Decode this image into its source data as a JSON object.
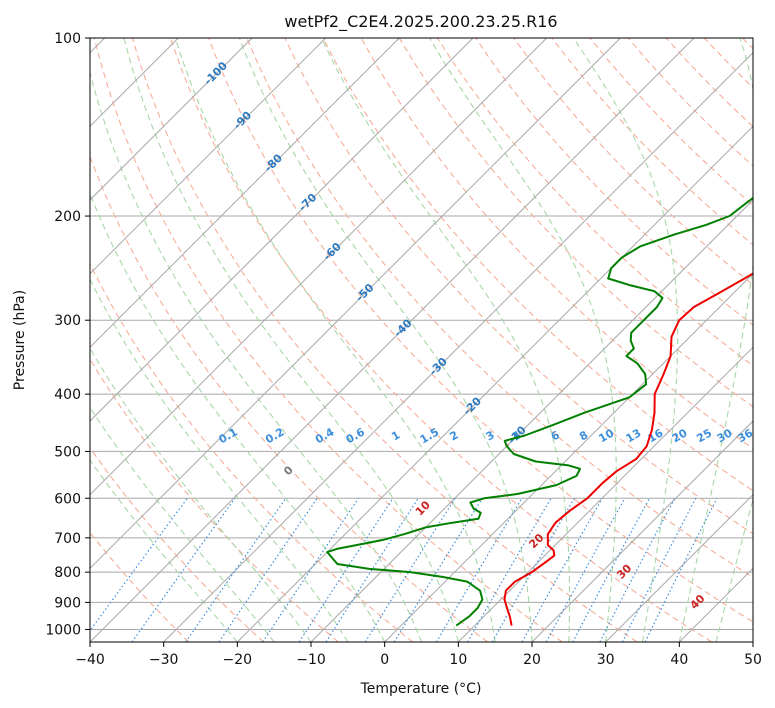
{
  "chart_data": {
    "type": "line",
    "title": "wetPf2_C2E4.2025.200.23.25.R16",
    "xlabel": "Temperature (°C)",
    "ylabel": "Pressure (hPa)",
    "xlim": [
      -40,
      50
    ],
    "ylim": [
      1050,
      100
    ],
    "y_scale": "log",
    "grid": true,
    "x_ticks": [
      "−40",
      "−30",
      "−20",
      "−10",
      "0",
      "10",
      "20",
      "30",
      "40",
      "50"
    ],
    "y_ticks": [
      "100",
      "200",
      "300",
      "400",
      "500",
      "600",
      "700",
      "800",
      "900",
      "1000"
    ],
    "colors": {
      "temperature": "#ee0000",
      "dewpoint": "#008000",
      "isotherm": "#a8a8a8",
      "dry_adiabat": "#f6ad98",
      "moist_adiabat": "#a8d6a8",
      "mixing_ratio": "#3c8fdc",
      "isobar": "#a8a8a8",
      "label_blue": "#2c79c0",
      "label_red": "#cc2222"
    },
    "series": [
      {
        "key": "temperature",
        "points": [
          [
            15,
            985
          ],
          [
            13.5,
            950
          ],
          [
            12,
            920
          ],
          [
            10.5,
            890
          ],
          [
            9.5,
            860
          ],
          [
            9.5,
            830
          ],
          [
            10.5,
            800
          ],
          [
            11,
            770
          ],
          [
            11.3,
            750
          ],
          [
            10.5,
            735
          ],
          [
            9,
            720
          ],
          [
            7.5,
            690
          ],
          [
            7,
            660
          ],
          [
            7.3,
            630
          ],
          [
            8,
            600
          ],
          [
            8,
            565
          ],
          [
            8.3,
            540
          ],
          [
            9.3,
            515
          ],
          [
            9,
            490
          ],
          [
            7.5,
            460
          ],
          [
            5.5,
            430
          ],
          [
            3,
            400
          ],
          [
            1.5,
            370
          ],
          [
            0,
            345
          ],
          [
            -2.5,
            320
          ],
          [
            -3.7,
            300
          ],
          [
            -3.5,
            285
          ],
          [
            -2,
            270
          ],
          [
            -0.5,
            255
          ],
          [
            1.5,
            235
          ],
          [
            3,
            220
          ],
          [
            5,
            200
          ],
          [
            6.5,
            185
          ],
          [
            8,
            170
          ],
          [
            10,
            160
          ],
          [
            12,
            150
          ],
          [
            14.5,
            140
          ],
          [
            16.5,
            135
          ],
          [
            17,
            130
          ],
          [
            17,
            125
          ],
          [
            17.7,
            120
          ],
          [
            18.3,
            115
          ],
          [
            19,
            110
          ],
          [
            20,
            105
          ],
          [
            21.5,
            100
          ]
        ]
      },
      {
        "key": "dewpoint",
        "points": [
          [
            7.5,
            985
          ],
          [
            8,
            950
          ],
          [
            8,
            920
          ],
          [
            7.5,
            890
          ],
          [
            6,
            860
          ],
          [
            3,
            830
          ],
          [
            -1,
            815
          ],
          [
            -6,
            800
          ],
          [
            -12,
            790
          ],
          [
            -17,
            775
          ],
          [
            -20,
            740
          ],
          [
            -19,
            730
          ],
          [
            -17,
            720
          ],
          [
            -14,
            705
          ],
          [
            -12,
            690
          ],
          [
            -10,
            672
          ],
          [
            -7,
            660
          ],
          [
            -4,
            650
          ],
          [
            -4.5,
            635
          ],
          [
            -6,
            625
          ],
          [
            -7.3,
            610
          ],
          [
            -6,
            600
          ],
          [
            -2,
            590
          ],
          [
            2,
            570
          ],
          [
            3.5,
            550
          ],
          [
            3,
            535
          ],
          [
            1,
            528
          ],
          [
            -4,
            520
          ],
          [
            -8,
            505
          ],
          [
            -10,
            490
          ],
          [
            -11,
            480
          ],
          [
            -9,
            470
          ],
          [
            -6.5,
            450
          ],
          [
            -4,
            430
          ],
          [
            0,
            405
          ],
          [
            0.5,
            385
          ],
          [
            -1,
            370
          ],
          [
            -3.5,
            355
          ],
          [
            -6,
            345
          ],
          [
            -6,
            335
          ],
          [
            -7.5,
            325
          ],
          [
            -8.5,
            315
          ],
          [
            -8.5,
            300
          ],
          [
            -8.5,
            285
          ],
          [
            -9,
            275
          ],
          [
            -11,
            268
          ],
          [
            -15,
            262
          ],
          [
            -19,
            255
          ],
          [
            -20,
            245
          ],
          [
            -20,
            235
          ],
          [
            -19,
            225
          ],
          [
            -16,
            215
          ],
          [
            -13,
            207
          ],
          [
            -11,
            200
          ],
          [
            -10.5,
            190
          ],
          [
            -9.5,
            175
          ],
          [
            -9,
            165
          ],
          [
            -10,
            155
          ],
          [
            -11.5,
            145
          ],
          [
            -10,
            140
          ],
          [
            -7,
            135
          ],
          [
            -4,
            128
          ],
          [
            -2,
            120
          ],
          [
            -1,
            110
          ],
          [
            0,
            100
          ]
        ]
      }
    ],
    "isotherm_labels": [
      "-100",
      "-90",
      "-80",
      "-70",
      "-60",
      "-50",
      "-40",
      "-30",
      "-20",
      "-10"
    ],
    "mixing_ratio_labels": [
      "0.1",
      "0.2",
      "0.4",
      "0.6",
      "1",
      "1.5",
      "2",
      "3",
      "4",
      "6",
      "8",
      "10",
      "13",
      "16",
      "20",
      "25",
      "30",
      "36"
    ],
    "moist_adiabat_labels": [
      "0",
      "10",
      "20",
      "30",
      "40"
    ]
  }
}
